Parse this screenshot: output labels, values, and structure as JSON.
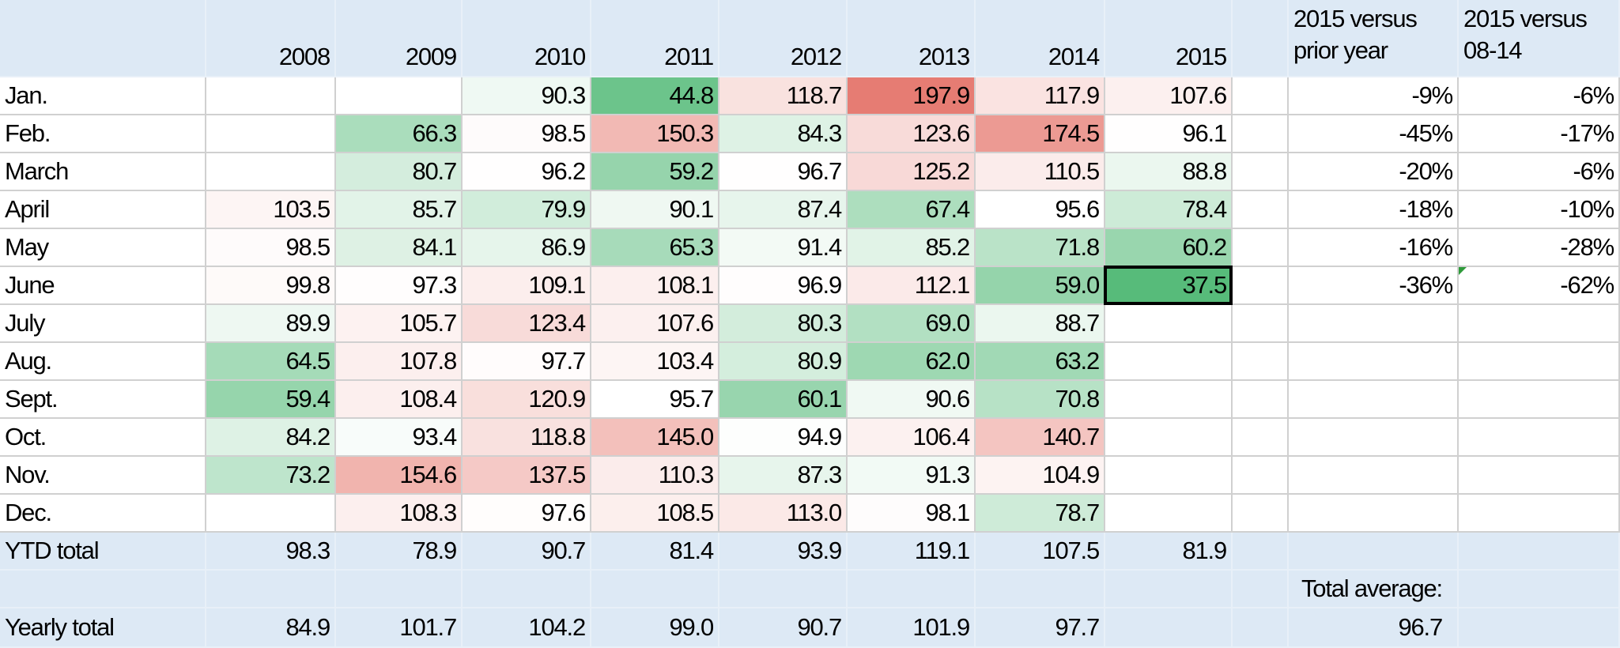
{
  "columns": [
    "2008",
    "2009",
    "2010",
    "2011",
    "2012",
    "2013",
    "2014",
    "2015"
  ],
  "compare_headers": [
    "2015 versus prior year",
    "2015 versus 08-14"
  ],
  "color_scale": {
    "low": "#57bb7a",
    "mid": "#ffffff",
    "high": "#e67c73"
  },
  "rows": [
    {
      "label": "Jan.",
      "values": [
        null,
        null,
        "90.3",
        "44.8",
        "118.7",
        "197.9",
        "117.9",
        "107.6"
      ],
      "compare": [
        "-9%",
        "-6%"
      ]
    },
    {
      "label": "Feb.",
      "values": [
        null,
        "66.3",
        "98.5",
        "150.3",
        "84.3",
        "123.6",
        "174.5",
        "96.1"
      ],
      "compare": [
        "-45%",
        "-17%"
      ]
    },
    {
      "label": "March",
      "values": [
        null,
        "80.7",
        "96.2",
        "59.2",
        "96.7",
        "125.2",
        "110.5",
        "88.8"
      ],
      "compare": [
        "-20%",
        "-6%"
      ]
    },
    {
      "label": "April",
      "values": [
        "103.5",
        "85.7",
        "79.9",
        "90.1",
        "87.4",
        "67.4",
        "95.6",
        "78.4"
      ],
      "compare": [
        "-18%",
        "-10%"
      ]
    },
    {
      "label": "May",
      "values": [
        "98.5",
        "84.1",
        "86.9",
        "65.3",
        "91.4",
        "85.2",
        "71.8",
        "60.2"
      ],
      "compare": [
        "-16%",
        "-28%"
      ]
    },
    {
      "label": "June",
      "values": [
        "99.8",
        "97.3",
        "109.1",
        "108.1",
        "96.9",
        "112.1",
        "59.0",
        "37.5"
      ],
      "compare": [
        "-36%",
        "-62%"
      ]
    },
    {
      "label": "July",
      "values": [
        "89.9",
        "105.7",
        "123.4",
        "107.6",
        "80.3",
        "69.0",
        "88.7",
        null
      ],
      "compare": [
        null,
        null
      ]
    },
    {
      "label": "Aug.",
      "values": [
        "64.5",
        "107.8",
        "97.7",
        "103.4",
        "80.9",
        "62.0",
        "63.2",
        null
      ],
      "compare": [
        null,
        null
      ]
    },
    {
      "label": "Sept.",
      "values": [
        "59.4",
        "108.4",
        "120.9",
        "95.7",
        "60.1",
        "90.6",
        "70.8",
        null
      ],
      "compare": [
        null,
        null
      ]
    },
    {
      "label": "Oct.",
      "values": [
        "84.2",
        "93.4",
        "118.8",
        "145.0",
        "94.9",
        "106.4",
        "140.7",
        null
      ],
      "compare": [
        null,
        null
      ]
    },
    {
      "label": "Nov.",
      "values": [
        "73.2",
        "154.6",
        "137.5",
        "110.3",
        "87.3",
        "91.3",
        "104.9",
        null
      ],
      "compare": [
        null,
        null
      ]
    },
    {
      "label": "Dec.",
      "values": [
        null,
        "108.3",
        "97.6",
        "108.5",
        "113.0",
        "98.1",
        "78.7",
        null
      ],
      "compare": [
        null,
        null
      ]
    }
  ],
  "ytd": {
    "label": "YTD total",
    "values": [
      "98.3",
      "78.9",
      "90.7",
      "81.4",
      "93.9",
      "119.1",
      "107.5",
      "81.9"
    ]
  },
  "total_average": {
    "label": "Total average:",
    "value": "96.7"
  },
  "yearly": {
    "label": "Yearly total",
    "values": [
      "84.9",
      "101.7",
      "104.2",
      "99.0",
      "90.7",
      "101.9",
      "97.7",
      null
    ]
  }
}
